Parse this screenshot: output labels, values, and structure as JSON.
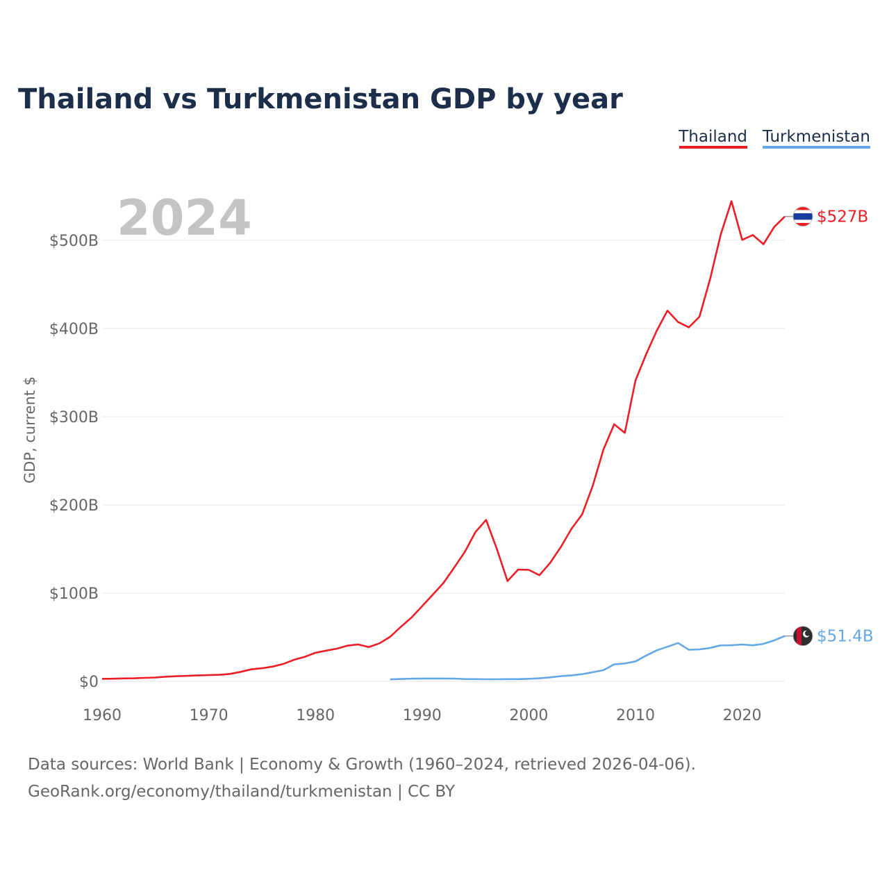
{
  "chart_data": {
    "type": "line",
    "title": "Thailand vs Turkmenistan GDP by year",
    "year_label": "2024",
    "ylabel": "GDP, current $",
    "xlabel": "",
    "xlim": [
      1960,
      2024
    ],
    "ylim": [
      0,
      550
    ],
    "y_unit": "billion US$",
    "x_ticks": [
      1960,
      1970,
      1980,
      1990,
      2000,
      2010,
      2020
    ],
    "y_ticks": [
      0,
      100,
      200,
      300,
      400,
      500
    ],
    "y_tick_labels": [
      "$0",
      "$100B",
      "$200B",
      "$300B",
      "$400B",
      "$500B"
    ],
    "legend_position": "top-right",
    "series": [
      {
        "name": "Thailand",
        "color": "#ee1c25",
        "flag": "thailand-flag",
        "end_label": "$527B",
        "x": [
          1960,
          1961,
          1962,
          1963,
          1964,
          1965,
          1966,
          1967,
          1968,
          1969,
          1970,
          1971,
          1972,
          1973,
          1974,
          1975,
          1976,
          1977,
          1978,
          1979,
          1980,
          1981,
          1982,
          1983,
          1984,
          1985,
          1986,
          1987,
          1988,
          1989,
          1990,
          1991,
          1992,
          1993,
          1994,
          1995,
          1996,
          1997,
          1998,
          1999,
          2000,
          2001,
          2002,
          2003,
          2004,
          2005,
          2006,
          2007,
          2008,
          2009,
          2010,
          2011,
          2012,
          2013,
          2014,
          2015,
          2016,
          2017,
          2018,
          2019,
          2020,
          2021,
          2022,
          2023,
          2024
        ],
        "values": [
          2.8,
          3.0,
          3.3,
          3.5,
          3.9,
          4.3,
          5.3,
          5.8,
          6.2,
          6.8,
          7.1,
          7.4,
          8.4,
          10.8,
          13.6,
          14.9,
          16.8,
          19.8,
          24.5,
          27.8,
          32.4,
          34.8,
          37.0,
          40.5,
          41.8,
          38.9,
          43.1,
          50.5,
          61.7,
          72.3,
          85.3,
          98.2,
          111.5,
          128.9,
          146.7,
          169.3,
          183.0,
          150.2,
          113.7,
          126.7,
          126.4,
          120.3,
          134.3,
          152.3,
          172.9,
          189.3,
          221.8,
          262.9,
          291.4,
          281.7,
          341.1,
          370.8,
          397.6,
          420.3,
          407.3,
          401.3,
          413.4,
          456.4,
          506.8,
          544.3,
          500.5,
          506.0,
          495.6,
          515.0,
          527.0
        ]
      },
      {
        "name": "Turkmenistan",
        "color": "#62a8e5",
        "flag": "turkmenistan-flag",
        "end_label": "$51.4B",
        "x": [
          1987,
          1988,
          1989,
          1990,
          1991,
          1992,
          1993,
          1994,
          1995,
          1996,
          1997,
          1998,
          1999,
          2000,
          2001,
          2002,
          2003,
          2004,
          2005,
          2006,
          2007,
          2008,
          2009,
          2010,
          2011,
          2012,
          2013,
          2014,
          2015,
          2016,
          2017,
          2018,
          2019,
          2020,
          2021,
          2022,
          2023,
          2024
        ],
        "values": [
          2.2,
          2.7,
          3.0,
          3.2,
          3.2,
          3.2,
          3.1,
          2.6,
          2.5,
          2.4,
          2.4,
          2.5,
          2.5,
          2.9,
          3.5,
          4.5,
          5.9,
          6.8,
          8.1,
          10.3,
          12.7,
          19.3,
          20.2,
          22.6,
          29.2,
          35.2,
          39.2,
          43.5,
          35.8,
          36.2,
          37.9,
          40.8,
          40.9,
          41.7,
          40.8,
          42.5,
          46.4,
          51.4
        ]
      }
    ],
    "source_line_1": "Data sources: World Bank | Economy & Growth (1960–2024, retrieved 2026-04-06).",
    "source_line_2": "GeoRank.org/economy/thailand/turkmenistan | CC BY"
  }
}
